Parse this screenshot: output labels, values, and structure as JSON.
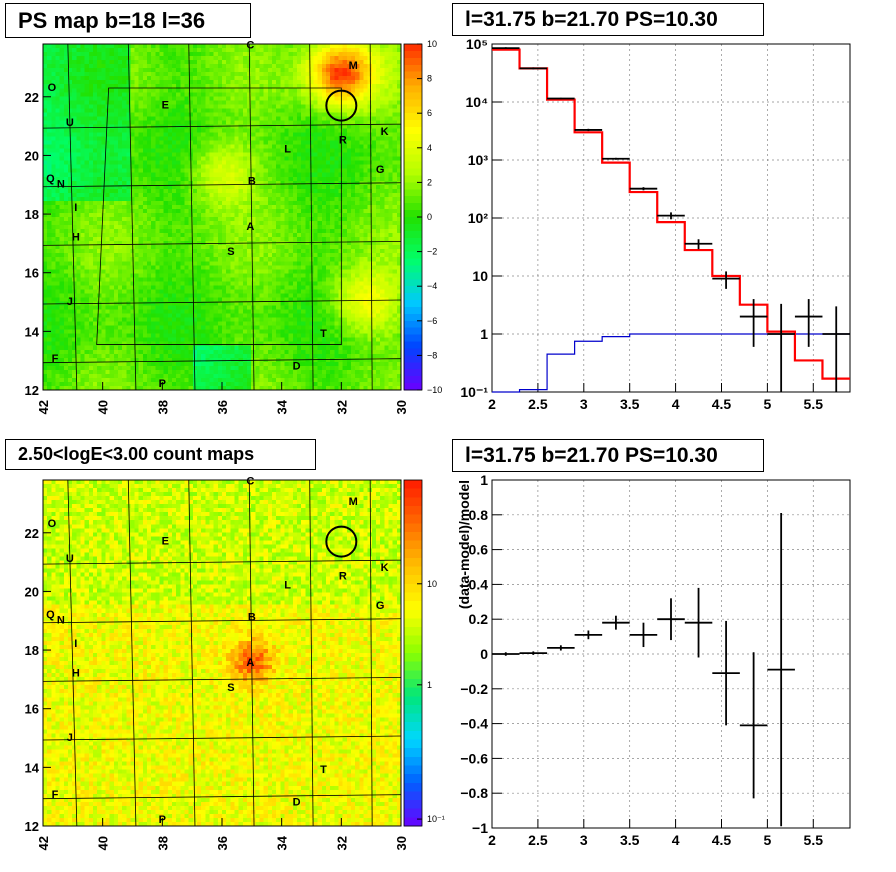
{
  "panels": {
    "ps_map_title": "PS map b=18 l=36",
    "spectrum_title": "l=31.75 b=21.70 PS=10.30",
    "count_map_title": "2.50<logE<3.00 count maps",
    "residual_title": "l=31.75 b=21.70 PS=10.30"
  },
  "maps": {
    "x_ticks": [
      "42",
      "40",
      "38",
      "36",
      "34",
      "32",
      "30"
    ],
    "y_ticks": [
      "12",
      "14",
      "16",
      "18",
      "20",
      "22"
    ],
    "source_labels": [
      "C",
      "M",
      "O",
      "E",
      "U",
      "K",
      "L",
      "R",
      "G",
      "Q",
      "N",
      "B",
      "I",
      "A",
      "H",
      "S",
      "J",
      "T",
      "F",
      "D",
      "P"
    ],
    "circle_center": {
      "l": 32.0,
      "b": 21.7
    },
    "ps_colorbar_ticks": [
      "10",
      "8",
      "6",
      "4",
      "2",
      "0",
      "−2",
      "−4",
      "−6",
      "−8",
      "−10"
    ],
    "count_colorbar_ticks": [
      "10",
      "1",
      "10⁻¹"
    ]
  },
  "chart_data": [
    {
      "type": "heatmap",
      "title": "PS map b=18 l=36",
      "xlim": [
        42,
        30
      ],
      "ylim": [
        12,
        23.8
      ],
      "zlim": [
        -10,
        10
      ],
      "palette": [
        "#6a00ff",
        "#0044ff",
        "#00c8ff",
        "#00ff6a",
        "#22e100",
        "#b4ff00",
        "#ffff00",
        "#ffb000",
        "#ff2a00"
      ],
      "hotspots": [
        {
          "l": 32,
          "b": 22.8,
          "level": 9
        },
        {
          "l": 31.2,
          "b": 15.0,
          "level": 4
        },
        {
          "l": 36,
          "b": 19.4,
          "level": 3
        }
      ]
    },
    {
      "type": "bar",
      "title": "l=31.75 b=21.70 PS=10.30",
      "xlim": [
        2,
        5.9
      ],
      "ylim": [
        0.1,
        100000
      ],
      "log_y": true,
      "x_ticks": [
        "2",
        "2.5",
        "3",
        "3.5",
        "4",
        "4.5",
        "5",
        "5.5"
      ],
      "y_ticks": [
        "10⁻¹",
        "1",
        "10",
        "10²",
        "10³",
        "10⁴",
        "10⁵"
      ],
      "grid": true,
      "bin_edges": [
        2.0,
        2.3,
        2.6,
        2.9,
        3.2,
        3.5,
        3.8,
        4.1,
        4.4,
        4.7,
        5.0,
        5.3,
        5.6,
        5.9
      ],
      "series": [
        {
          "values": [
            80000,
            38000,
            11000,
            3000,
            900,
            280,
            85,
            28,
            10,
            3.2,
            1.1,
            0.35,
            0.17
          ],
          "color": "#ff0000"
        },
        {
          "values": [
            0.1,
            0.11,
            0.45,
            0.75,
            0.9,
            1.0,
            1.0,
            1.0,
            1.0,
            1.0,
            1.0,
            1.0,
            1.0
          ],
          "color": "#0000cc"
        },
        {
          "values": [
            85000,
            38000,
            11500,
            3300,
            1050,
            320,
            110,
            36,
            9,
            2,
            1,
            2,
            1
          ],
          "err_low": [
            3000,
            1500,
            300,
            150,
            40,
            20,
            15,
            7,
            3,
            1.4,
            1,
            1.4,
            0.9
          ],
          "err_high": [
            3000,
            1500,
            300,
            150,
            40,
            20,
            15,
            7,
            3,
            2.0,
            2.3,
            2.0,
            2.0
          ],
          "color": "#000000"
        }
      ]
    },
    {
      "type": "heatmap",
      "title": "2.50<logE<3.00 count maps",
      "xlim": [
        42,
        30
      ],
      "ylim": [
        12,
        23.8
      ],
      "log_z": true,
      "zlim": [
        0.07,
        50
      ],
      "palette": [
        "#6a00ff",
        "#0060ff",
        "#00d8ff",
        "#00e67a",
        "#8cff00",
        "#ffff00",
        "#ffc000",
        "#ff6a00",
        "#ff1a00"
      ],
      "hotspots": [
        {
          "l": 35,
          "b": 17.6,
          "level": 9
        }
      ]
    },
    {
      "type": "scatter",
      "title": "l=31.75 b=21.70 PS=10.30",
      "xlim": [
        2,
        5.9
      ],
      "ylim": [
        -1,
        1
      ],
      "ylabel": "(data-model)/model",
      "x_ticks": [
        "2",
        "2.5",
        "3",
        "3.5",
        "4",
        "4.5",
        "5",
        "5.5"
      ],
      "y_ticks": [
        "−1",
        "−0.8",
        "−0.6",
        "−0.4",
        "−0.2",
        "0",
        "0.2",
        "0.4",
        "0.6",
        "0.8",
        "1"
      ],
      "grid": true,
      "points": [
        {
          "x": 2.15,
          "y": 0.0,
          "x_half": 0.15,
          "err": 0.01
        },
        {
          "x": 2.45,
          "y": 0.005,
          "x_half": 0.15,
          "err": 0.01
        },
        {
          "x": 2.75,
          "y": 0.035,
          "x_half": 0.15,
          "err": 0.015
        },
        {
          "x": 3.05,
          "y": 0.11,
          "x_half": 0.15,
          "err": 0.025
        },
        {
          "x": 3.35,
          "y": 0.18,
          "x_half": 0.15,
          "err": 0.04
        },
        {
          "x": 3.65,
          "y": 0.11,
          "x_half": 0.15,
          "err": 0.07
        },
        {
          "x": 3.95,
          "y": 0.2,
          "x_half": 0.15,
          "err": 0.12
        },
        {
          "x": 4.25,
          "y": 0.18,
          "x_half": 0.15,
          "err": 0.2
        },
        {
          "x": 4.55,
          "y": -0.11,
          "x_half": 0.15,
          "err": 0.3
        },
        {
          "x": 4.85,
          "y": -0.41,
          "x_half": 0.15,
          "err": 0.42
        },
        {
          "x": 5.15,
          "y": -0.09,
          "x_half": 0.15,
          "err": 0.9
        }
      ]
    }
  ]
}
